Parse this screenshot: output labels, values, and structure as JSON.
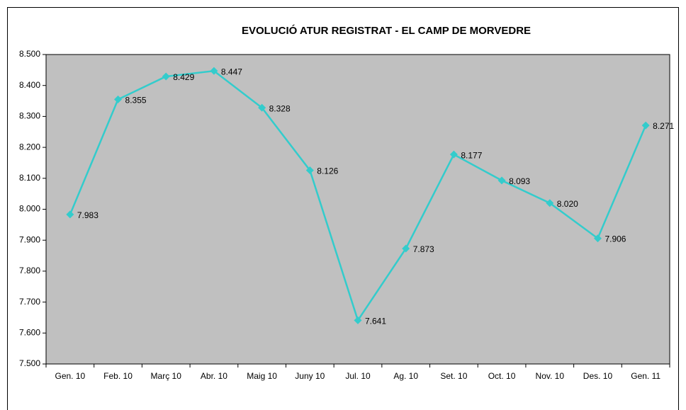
{
  "chart_data": {
    "type": "line",
    "title": "EVOLUCIÓ ATUR REGISTRAT - EL CAMP DE MORVEDRE",
    "categories": [
      "Gen. 10",
      "Feb. 10",
      "Març 10",
      "Abr. 10",
      "Maig 10",
      "Juny 10",
      "Jul. 10",
      "Ag. 10",
      "Set. 10",
      "Oct. 10",
      "Nov. 10",
      "Des. 10",
      "Gen. 11"
    ],
    "series": [
      {
        "color": "#33cccc",
        "values": [
          7983,
          8355,
          8429,
          8447,
          8328,
          8126,
          7641,
          7873,
          8177,
          8093,
          8020,
          7906,
          8271
        ],
        "value_labels": [
          "7.983",
          "8.355",
          "8.429",
          "8.447",
          "8.328",
          "8.126",
          "7.641",
          "7.873",
          "8.177",
          "8.093",
          "8.020",
          "7.906",
          "8.271"
        ]
      }
    ],
    "ylim": [
      7500,
      8500
    ],
    "yticks": [
      {
        "value": 7500,
        "label": "7.500"
      },
      {
        "value": 7600,
        "label": "7.600"
      },
      {
        "value": 7700,
        "label": "7.700"
      },
      {
        "value": 7800,
        "label": "7.800"
      },
      {
        "value": 7900,
        "label": "7.900"
      },
      {
        "value": 8000,
        "label": "8.000"
      },
      {
        "value": 8100,
        "label": "8.100"
      },
      {
        "value": 8200,
        "label": "8.200"
      },
      {
        "value": 8300,
        "label": "8.300"
      },
      {
        "value": 8400,
        "label": "8.400"
      },
      {
        "value": 8500,
        "label": "8.500"
      }
    ],
    "grid": false
  }
}
